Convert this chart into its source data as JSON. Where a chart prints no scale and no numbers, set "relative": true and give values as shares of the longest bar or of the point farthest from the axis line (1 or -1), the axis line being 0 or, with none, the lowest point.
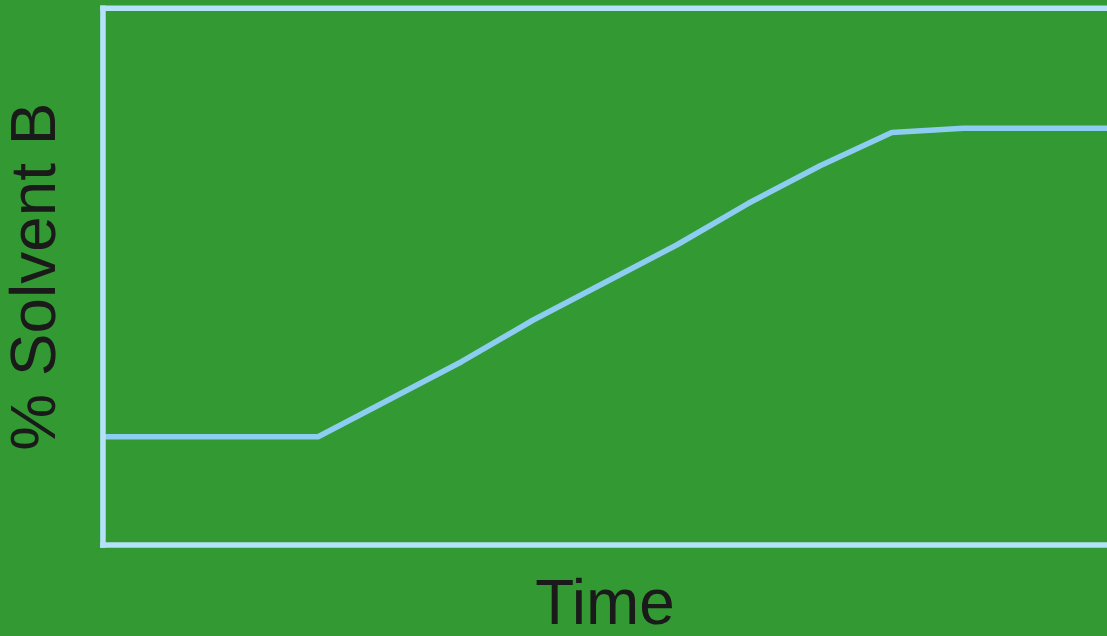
{
  "chart_data": {
    "type": "line",
    "xlabel": "Time",
    "ylabel": "% Solvent B",
    "relative": true,
    "categories": [
      null,
      null,
      null,
      null,
      null,
      null,
      null,
      null,
      null,
      null,
      null,
      null,
      null,
      null,
      null
    ],
    "series": [
      {
        "color": "#8ecdf2",
        "values": [
          0.26,
          0.26,
          0.26,
          0.26,
          0.35,
          0.44,
          0.54,
          0.63,
          0.72,
          0.82,
          0.91,
          0.99,
          1.0,
          1.0,
          1.0
        ]
      }
    ]
  }
}
